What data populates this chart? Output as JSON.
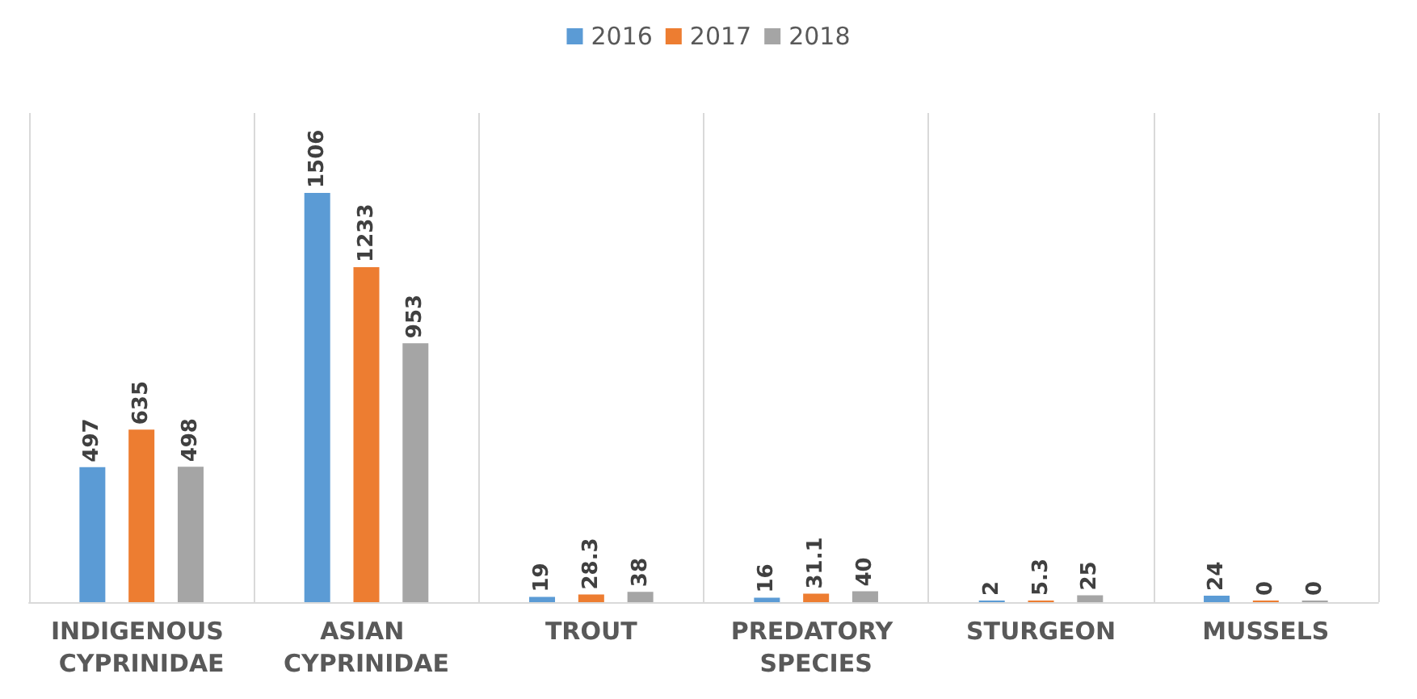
{
  "chart_data": {
    "type": "bar",
    "categories": [
      "INDIGENOUS CYPRINIDAE",
      "ASIAN CYPRINIDAE",
      "TROUT",
      "PREDATORY SPECIES",
      "STURGEON",
      "MUSSELS"
    ],
    "series": [
      {
        "name": "2016",
        "color": "#5b9bd5",
        "values": [
          497,
          1506,
          19,
          16,
          2,
          24
        ]
      },
      {
        "name": "2017",
        "color": "#ed7d31",
        "values": [
          635,
          1233,
          28.3,
          31.1,
          5.3,
          0
        ]
      },
      {
        "name": "2018",
        "color": "#a5a5a5",
        "values": [
          498,
          953,
          38,
          40,
          25,
          0
        ]
      }
    ],
    "data_labels": true,
    "grid": "x",
    "legend": "top"
  }
}
